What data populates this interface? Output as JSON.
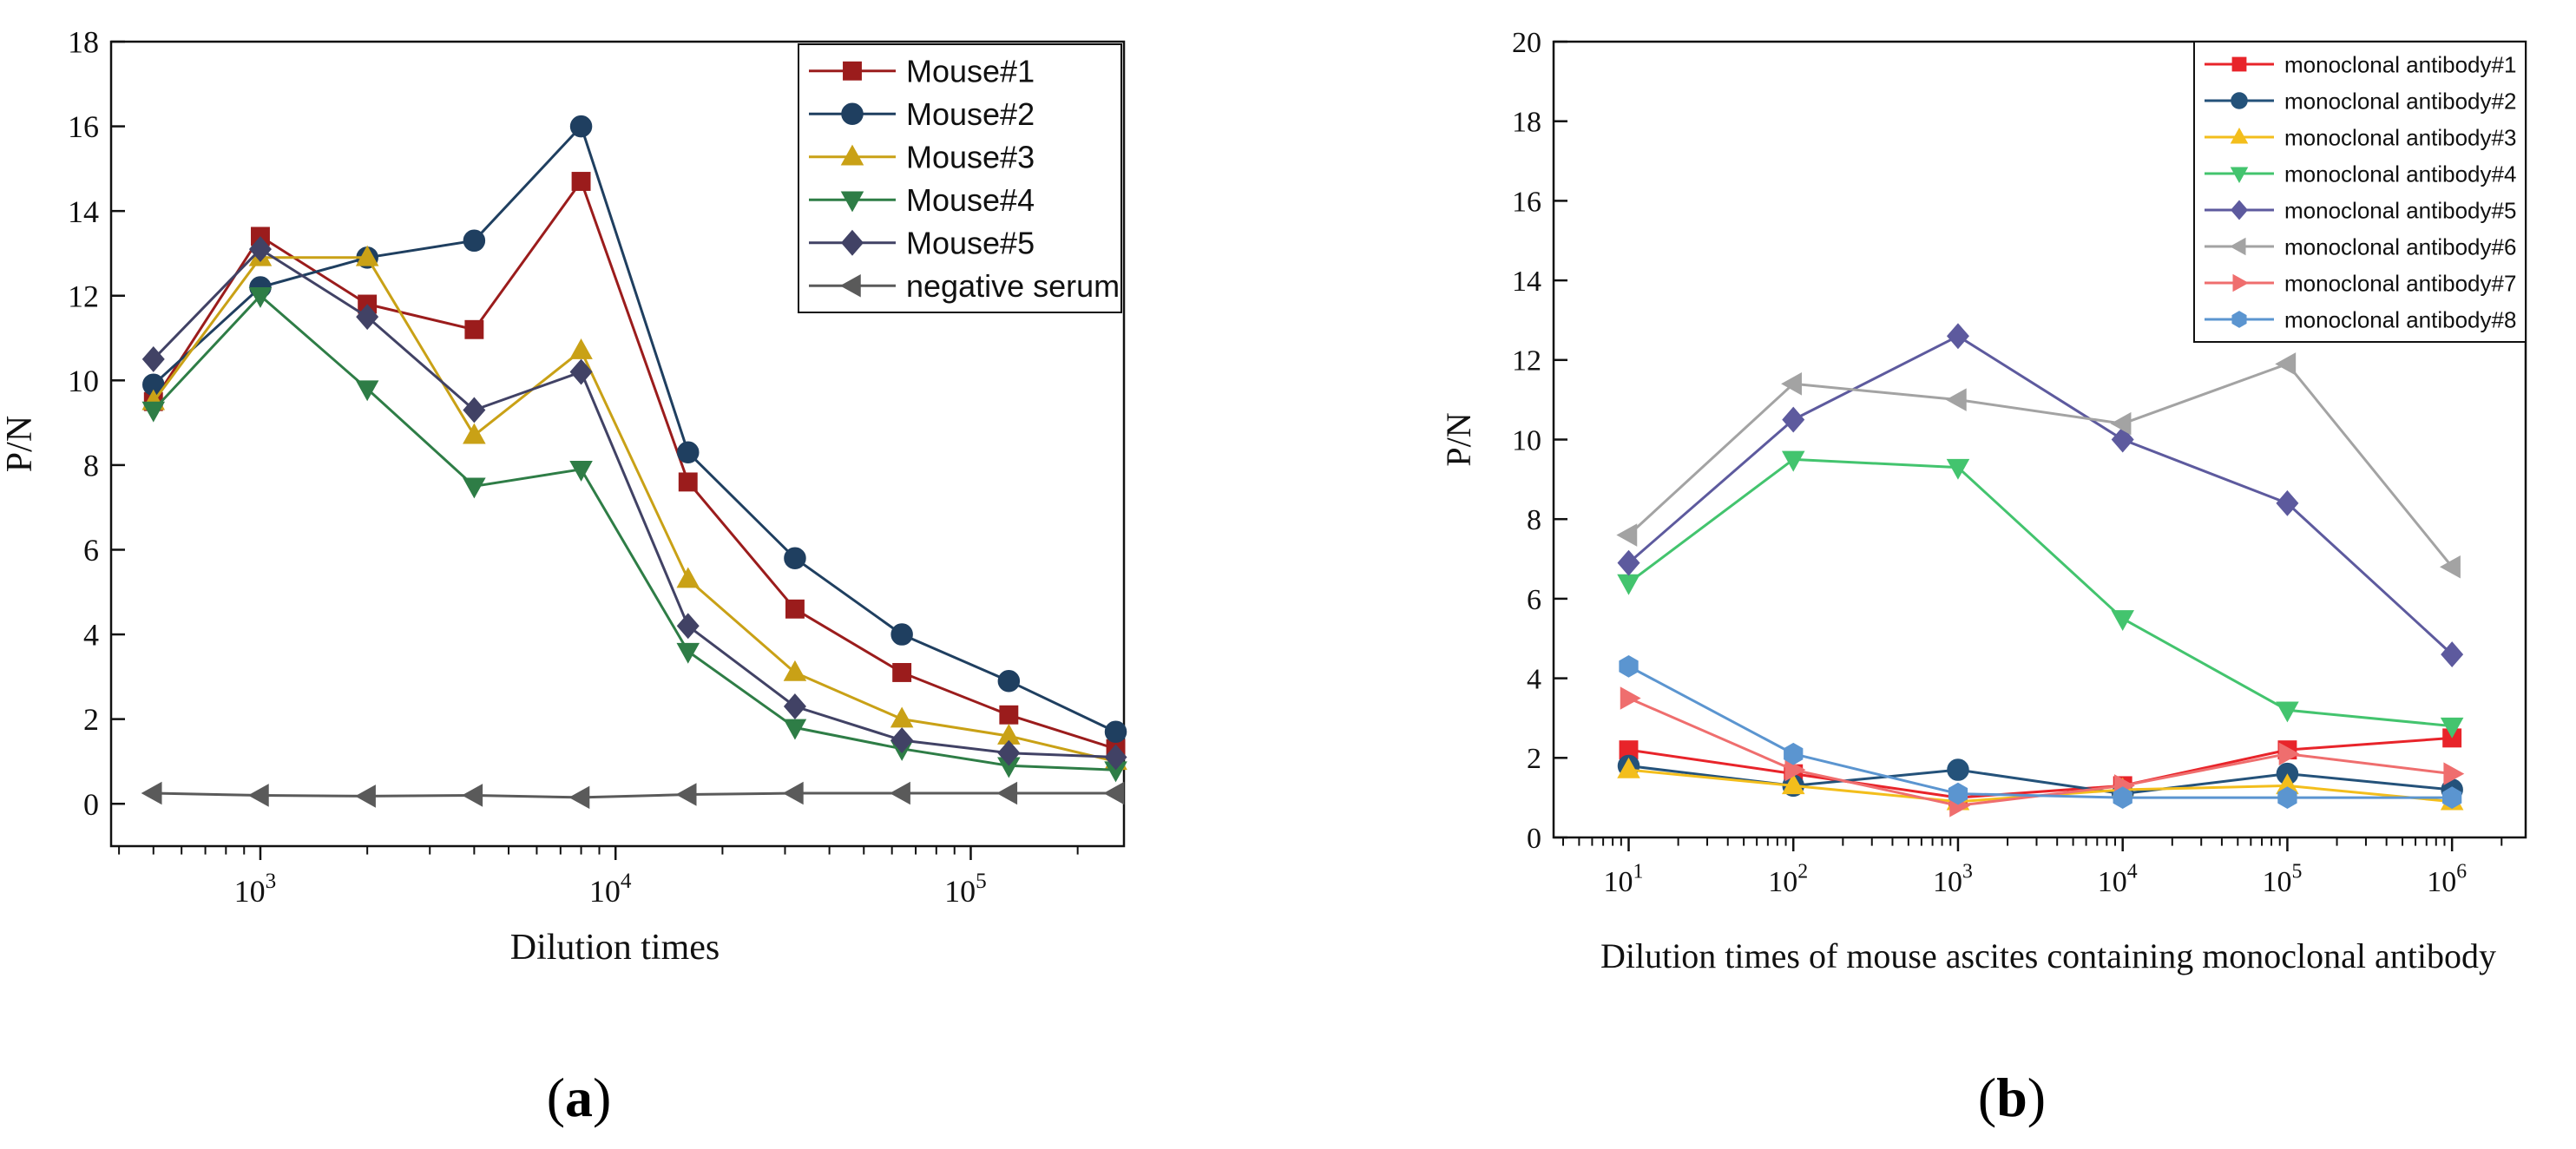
{
  "panels": [
    {
      "label": "(a)",
      "label_parts": {
        "open": "(",
        "letter": "a",
        "close": ")"
      },
      "chart_data": {
        "type": "line",
        "xscale": "log",
        "xlabel": "Dilution times",
        "ylabel": "P/N",
        "xlim": [
          380,
          270000
        ],
        "ylim": [
          -1,
          18
        ],
        "x_ticks": [
          1000,
          10000,
          100000
        ],
        "x_tick_labels": [
          {
            "base": "10",
            "exp": "3"
          },
          {
            "base": "10",
            "exp": "4"
          },
          {
            "base": "10",
            "exp": "5"
          }
        ],
        "y_ticks": [
          0,
          2,
          4,
          6,
          8,
          10,
          12,
          14,
          16,
          18
        ],
        "legend_position": "top-right",
        "x": [
          500,
          1000,
          2000,
          4000,
          8000,
          16000,
          32000,
          64000,
          128000,
          256000
        ],
        "series": [
          {
            "name": "Mouse#1",
            "color": "#9b1c1c",
            "marker": "square",
            "values": [
              9.5,
              13.4,
              11.8,
              11.2,
              14.7,
              7.6,
              4.6,
              3.1,
              2.1,
              1.3
            ]
          },
          {
            "name": "Mouse#2",
            "color": "#1f3f60",
            "marker": "circle",
            "values": [
              9.9,
              12.2,
              12.9,
              13.3,
              16.0,
              8.3,
              5.8,
              4.0,
              2.9,
              1.7
            ]
          },
          {
            "name": "Mouse#3",
            "color": "#c9a116",
            "marker": "triangle-up",
            "values": [
              9.5,
              12.9,
              12.9,
              8.7,
              10.7,
              5.3,
              3.1,
              2.0,
              1.6,
              1.0
            ]
          },
          {
            "name": "Mouse#4",
            "color": "#2e7d46",
            "marker": "triangle-down",
            "values": [
              9.3,
              12.0,
              9.8,
              7.5,
              7.9,
              3.6,
              1.8,
              1.3,
              0.9,
              0.8
            ]
          },
          {
            "name": "Mouse#5",
            "color": "#414265",
            "marker": "diamond",
            "values": [
              10.5,
              13.1,
              11.5,
              9.3,
              10.2,
              4.2,
              2.3,
              1.5,
              1.2,
              1.1
            ]
          },
          {
            "name": "negative serum",
            "color": "#5a5a5a",
            "marker": "triangle-left",
            "values": [
              0.25,
              0.2,
              0.18,
              0.2,
              0.15,
              0.22,
              0.25,
              0.25,
              0.25,
              0.25
            ]
          }
        ]
      }
    },
    {
      "label": "(b)",
      "label_parts": {
        "open": "(",
        "letter": "b",
        "close": ")"
      },
      "chart_data": {
        "type": "line",
        "xscale": "log",
        "xlabel": "Dilution times of mouse ascites containing monoclonal antibody",
        "ylabel": "P/N",
        "xlim": [
          3.5,
          2800000
        ],
        "ylim": [
          0,
          20
        ],
        "x_ticks": [
          10,
          100,
          1000,
          10000,
          100000,
          1000000
        ],
        "x_tick_labels": [
          {
            "base": "10",
            "exp": "1"
          },
          {
            "base": "10",
            "exp": "2"
          },
          {
            "base": "10",
            "exp": "3"
          },
          {
            "base": "10",
            "exp": "4"
          },
          {
            "base": "10",
            "exp": "5"
          },
          {
            "base": "10",
            "exp": "6"
          }
        ],
        "y_ticks": [
          0,
          2,
          4,
          6,
          8,
          10,
          12,
          14,
          16,
          18,
          20
        ],
        "legend_position": "top-right",
        "x": [
          10,
          100,
          1000,
          10000,
          100000,
          1000000
        ],
        "series": [
          {
            "name": "monoclonal antibody#1",
            "color": "#e8242a",
            "marker": "square",
            "values": [
              2.2,
              1.6,
              1.0,
              1.3,
              2.2,
              2.5
            ]
          },
          {
            "name": "monoclonal antibody#2",
            "color": "#24527a",
            "marker": "circle",
            "values": [
              1.8,
              1.3,
              1.7,
              1.1,
              1.6,
              1.2
            ]
          },
          {
            "name": "monoclonal antibody#3",
            "color": "#f3be1c",
            "marker": "triangle-up",
            "values": [
              1.7,
              1.3,
              0.9,
              1.2,
              1.3,
              0.9
            ]
          },
          {
            "name": "monoclonal antibody#4",
            "color": "#43c46e",
            "marker": "triangle-down",
            "values": [
              6.4,
              9.5,
              9.3,
              5.5,
              3.2,
              2.8
            ]
          },
          {
            "name": "monoclonal antibody#5",
            "color": "#5d5a9e",
            "marker": "diamond",
            "values": [
              6.9,
              10.5,
              12.6,
              10.0,
              8.4,
              4.6
            ]
          },
          {
            "name": "monoclonal antibody#6",
            "color": "#a3a3a3",
            "marker": "triangle-left",
            "values": [
              7.6,
              11.4,
              11.0,
              10.4,
              11.9,
              6.8
            ]
          },
          {
            "name": "monoclonal antibody#7",
            "color": "#ef6e6e",
            "marker": "triangle-right",
            "values": [
              3.5,
              1.7,
              0.8,
              1.3,
              2.1,
              1.6
            ]
          },
          {
            "name": "monoclonal antibody#8",
            "color": "#5b95d0",
            "marker": "hexagon",
            "values": [
              4.3,
              2.1,
              1.1,
              1.0,
              1.0,
              1.0
            ]
          }
        ]
      }
    }
  ]
}
